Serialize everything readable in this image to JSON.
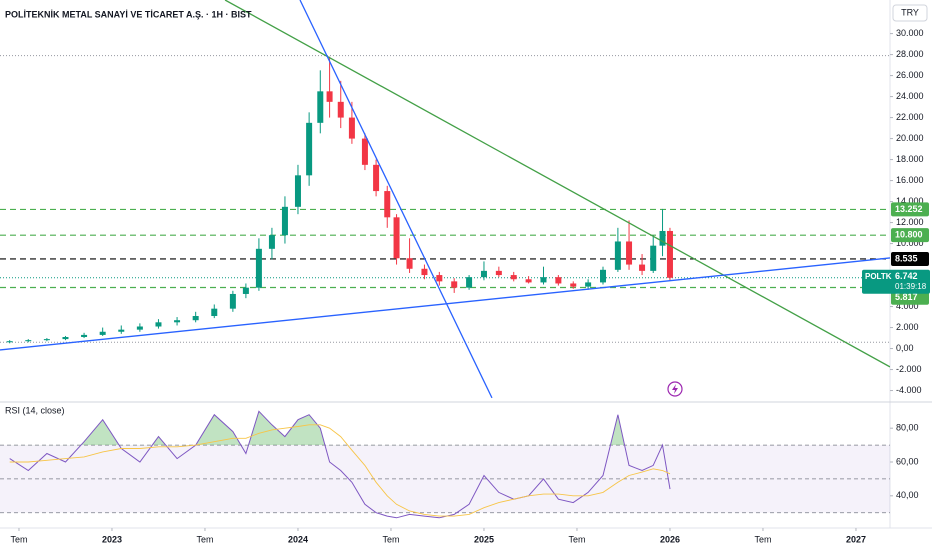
{
  "header": {
    "title": "POLİTEKNİK METAL SANAYİ VE TİCARET A.Ş. · 1H · BIST",
    "currency": "TRY"
  },
  "chart_data": [
    {
      "type": "candlestick",
      "x": [
        2022.45,
        2022.55,
        2022.65,
        2022.75,
        2022.85,
        2022.95,
        2023.05,
        2023.15,
        2023.25,
        2023.35,
        2023.45,
        2023.55,
        2023.65,
        2023.72,
        2023.79,
        2023.86,
        2023.93,
        2024.0,
        2024.06,
        2024.12,
        2024.17,
        2024.23,
        2024.29,
        2024.36,
        2024.42,
        2024.48,
        2024.53,
        2024.6,
        2024.68,
        2024.76,
        2024.84,
        2024.92,
        2025.0,
        2025.08,
        2025.16,
        2025.24,
        2025.32,
        2025.4,
        2025.48,
        2025.56,
        2025.64,
        2025.72,
        2025.78,
        2025.85,
        2025.91,
        2025.96,
        2026.0
      ],
      "open": [
        0.6,
        0.7,
        0.8,
        0.9,
        1.1,
        1.3,
        1.6,
        1.8,
        2.1,
        2.5,
        2.7,
        3.1,
        3.8,
        5.2,
        5.8,
        9.5,
        10.8,
        13.5,
        16.5,
        21.5,
        24.5,
        23.5,
        22.0,
        20.0,
        17.5,
        15.0,
        12.5,
        8.6,
        7.6,
        7.0,
        6.4,
        5.8,
        6.8,
        7.4,
        7.0,
        6.6,
        6.3,
        6.8,
        6.2,
        5.9,
        6.3,
        7.5,
        10.2,
        8.0,
        7.4,
        9.8,
        11.2
      ],
      "high": [
        0.8,
        0.9,
        1.0,
        1.2,
        1.5,
        2.0,
        2.2,
        2.4,
        2.8,
        3.0,
        3.5,
        4.2,
        5.5,
        6.2,
        10.5,
        11.5,
        14.5,
        17.5,
        22.5,
        26.5,
        27.8,
        25.5,
        23.5,
        20.5,
        18.0,
        15.5,
        12.8,
        10.5,
        8.0,
        7.3,
        6.7,
        7.0,
        8.3,
        7.8,
        7.3,
        6.9,
        7.8,
        7.0,
        6.4,
        6.6,
        7.8,
        11.5,
        12.2,
        9.0,
        10.8,
        13.3,
        11.5
      ],
      "low": [
        0.5,
        0.6,
        0.7,
        0.8,
        1.0,
        1.2,
        1.4,
        1.6,
        1.9,
        2.2,
        2.5,
        2.9,
        3.5,
        4.8,
        5.5,
        8.5,
        10.0,
        12.8,
        15.5,
        20.5,
        22.0,
        21.0,
        19.5,
        17.0,
        14.5,
        11.5,
        8.0,
        7.2,
        6.6,
        6.0,
        5.3,
        5.6,
        6.5,
        6.8,
        6.4,
        6.2,
        6.1,
        6.0,
        5.7,
        5.6,
        6.1,
        7.3,
        7.5,
        7.0,
        7.2,
        8.8,
        6.5
      ],
      "close": [
        0.7,
        0.8,
        0.9,
        1.1,
        1.3,
        1.6,
        1.8,
        2.1,
        2.5,
        2.7,
        3.1,
        3.8,
        5.2,
        5.8,
        9.5,
        10.8,
        13.5,
        16.5,
        21.5,
        24.5,
        23.5,
        22.0,
        20.0,
        17.5,
        15.0,
        12.5,
        8.6,
        7.6,
        7.0,
        6.4,
        5.8,
        6.8,
        7.4,
        7.0,
        6.6,
        6.3,
        6.8,
        6.2,
        5.9,
        6.3,
        7.5,
        10.2,
        8.0,
        7.4,
        9.8,
        11.2,
        6.742
      ],
      "up_color": "#089981",
      "down_color": "#f23645",
      "xlim": [
        2022.398,
        2027.183
      ],
      "ylim": [
        -4.9,
        33.2
      ],
      "yticks": [
        {
          "value": 30,
          "label": "30.000"
        },
        {
          "value": 28,
          "label": "28.000"
        },
        {
          "value": 26,
          "label": "26.000"
        },
        {
          "value": 24,
          "label": "24.000"
        },
        {
          "value": 22,
          "label": "22.000"
        },
        {
          "value": 20,
          "label": "20.000"
        },
        {
          "value": 18,
          "label": "18.000"
        },
        {
          "value": 16,
          "label": "16.000"
        },
        {
          "value": 14,
          "label": "14.000"
        },
        {
          "value": 12,
          "label": "12.000"
        },
        {
          "value": 10,
          "label": "10.000"
        },
        {
          "value": 4,
          "label": "4.000"
        },
        {
          "value": 2,
          "label": "2.000"
        },
        {
          "value": 0,
          "label": "0,00"
        },
        {
          "value": -2,
          "label": "-2.000"
        },
        {
          "value": -4,
          "label": "-4.000"
        }
      ],
      "xticks": [
        {
          "value": 2022.5,
          "label": "Tem"
        },
        2023,
        {
          "value": 2023.5,
          "label": "Tem"
        },
        2024,
        {
          "value": 2024.5,
          "label": "Tem"
        },
        2025,
        {
          "value": 2025.5,
          "label": "Tem"
        },
        2026,
        {
          "value": 2026.5,
          "label": "Tem"
        },
        2027
      ],
      "levels": [
        {
          "value": 13.252,
          "label": "13.252",
          "color": "#4caf50"
        },
        {
          "value": 10.8,
          "label": "10.800",
          "color": "#4caf50"
        },
        {
          "value": 8.535,
          "label": "8.535",
          "color": "#000000"
        },
        {
          "value": 5.817,
          "label": "5.817",
          "color": "#4caf50"
        }
      ],
      "dotted_lines": [
        27.9,
        0.6
      ],
      "trendlines": [
        {
          "color": "#43a047",
          "points": [
            [
              2023.608,
              33.2
            ],
            [
              2027.183,
              -1.75
            ]
          ]
        },
        {
          "color": "#2962ff",
          "points": [
            [
              2024.011,
              33.2
            ],
            [
              2025.043,
              -4.7
            ]
          ]
        },
        {
          "color": "#2962ff",
          "points": [
            [
              2022.398,
              -0.13
            ],
            [
              2027.183,
              8.63
            ]
          ]
        }
      ],
      "last": {
        "symbol": "POLTK",
        "value": 6.742,
        "countdown": "01:39:18",
        "color": "#089981"
      }
    },
    {
      "type": "line",
      "title": "RSI (14, close)",
      "x": [
        2022.45,
        2022.55,
        2022.65,
        2022.75,
        2022.85,
        2022.95,
        2023.05,
        2023.15,
        2023.25,
        2023.35,
        2023.45,
        2023.55,
        2023.65,
        2023.72,
        2023.79,
        2023.86,
        2023.93,
        2024.0,
        2024.06,
        2024.12,
        2024.17,
        2024.23,
        2024.29,
        2024.36,
        2024.42,
        2024.48,
        2024.53,
        2024.6,
        2024.68,
        2024.76,
        2024.84,
        2024.92,
        2025.0,
        2025.08,
        2025.16,
        2025.24,
        2025.32,
        2025.4,
        2025.48,
        2025.56,
        2025.64,
        2025.72,
        2025.78,
        2025.85,
        2025.91,
        2025.96,
        2026.0
      ],
      "series": [
        {
          "color": "#7e57c2",
          "values": [
            62,
            55,
            65,
            60,
            72,
            85,
            68,
            60,
            75,
            62,
            70,
            88,
            78,
            65,
            90,
            82,
            75,
            85,
            88,
            80,
            60,
            55,
            48,
            35,
            30,
            28,
            27,
            29,
            28,
            27,
            29,
            35,
            52,
            42,
            38,
            40,
            50,
            38,
            36,
            42,
            52,
            88,
            58,
            55,
            58,
            70,
            44
          ]
        },
        {
          "color": "#f7c548",
          "values": [
            60,
            60,
            61,
            62,
            63,
            66,
            68,
            68,
            69,
            69,
            70,
            72,
            74,
            74,
            77,
            79,
            80,
            81,
            82,
            82,
            80,
            75,
            67,
            58,
            48,
            40,
            35,
            31,
            29,
            28,
            28,
            29,
            33,
            36,
            38,
            40,
            41,
            41,
            40,
            40,
            42,
            48,
            52,
            54,
            56,
            55,
            53
          ]
        }
      ],
      "xlim": [
        2022.398,
        2027.183
      ],
      "ylim": [
        25.7,
        94.3
      ],
      "yticks": [
        {
          "value": 80,
          "label": "80,00"
        },
        {
          "value": 60,
          "label": "60,00"
        },
        {
          "value": 40,
          "label": "40,00"
        }
      ],
      "levels": [
        70,
        50,
        30
      ],
      "band": [
        30,
        70
      ],
      "band_color": "#7e57c2",
      "overbought_color": "#4caf50"
    }
  ]
}
